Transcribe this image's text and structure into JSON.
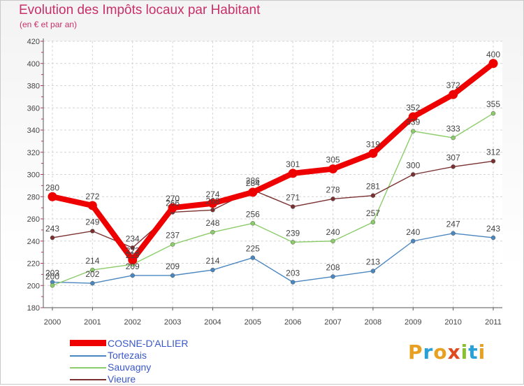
{
  "title": "Evolution des Impôts locaux par Habitant",
  "subtitle": "(en € et par an)",
  "logo": {
    "text": "Proxiti",
    "colors": [
      "#e8a020",
      "#2aa0d8",
      "#e8a020",
      "#e04a20",
      "#88c030",
      "#2aa0d8",
      "#e8a020"
    ]
  },
  "chart_data": {
    "type": "line",
    "title": "Evolution des Impôts locaux par Habitant",
    "subtitle": "(en € et par an)",
    "xlabel": "",
    "ylabel": "",
    "x": [
      "2000",
      "2001",
      "2002",
      "2003",
      "2004",
      "2005",
      "2006",
      "2007",
      "2008",
      "2009",
      "2010",
      "2011"
    ],
    "yticks": [
      "180",
      "200",
      "220",
      "240",
      "260",
      "280",
      "300",
      "320",
      "340",
      "360",
      "380",
      "400",
      "420"
    ],
    "ylim": [
      180,
      420
    ],
    "grid": true,
    "legend": "bottom-left",
    "series": [
      {
        "name": "Tortezais",
        "color": "#4a86c0",
        "values": [
          203,
          202,
          209,
          209,
          214,
          225,
          203,
          208,
          213,
          240,
          247,
          243
        ],
        "labels": [
          "203",
          "202",
          "209",
          "209",
          "214",
          "225",
          "203",
          "208",
          "213",
          "240",
          "247",
          "243"
        ]
      },
      {
        "name": "Sauvagny",
        "color": "#8ccc6a",
        "values": [
          200,
          214,
          219,
          237,
          248,
          256,
          239,
          240,
          257,
          339,
          333,
          355
        ],
        "labels": [
          "200",
          "214",
          "219",
          "237",
          "248",
          "256",
          "239",
          "240",
          "257",
          "339",
          "333",
          "355"
        ]
      },
      {
        "name": "Vieure",
        "color": "#7a3030",
        "values": [
          243,
          249,
          234,
          266,
          268,
          286,
          271,
          278,
          281,
          300,
          307,
          312
        ],
        "labels": [
          "243",
          "249",
          "234",
          "266",
          "268",
          "286",
          "271",
          "278",
          "281",
          "300",
          "307",
          "312"
        ]
      },
      {
        "name": "COSNE-D'ALLIER",
        "color": "#ee0000",
        "values": [
          280,
          272,
          223,
          270,
          274,
          284,
          301,
          305,
          319,
          352,
          372,
          400
        ],
        "labels": [
          "280",
          "272",
          "223",
          "270",
          "274",
          "284",
          "301",
          "305",
          "319",
          "352",
          "372",
          "400"
        ]
      }
    ],
    "legend_order": [
      "COSNE-D'ALLIER",
      "Tortezais",
      "Sauvagny",
      "Vieure"
    ]
  }
}
